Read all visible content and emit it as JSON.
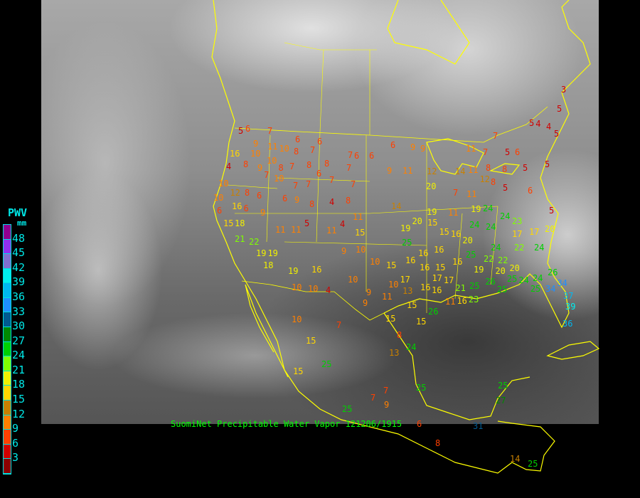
{
  "caption": "SuomiNet Precipitable Water Vapor 121206/1915",
  "legend": {
    "title": "PWV",
    "unit": "mm",
    "labels": [
      "48",
      "45",
      "42",
      "39",
      "36",
      "33",
      "30",
      "27",
      "24",
      "21",
      "18",
      "15",
      "12",
      "9",
      "6",
      "3"
    ],
    "colors_top_to_bottom": [
      "#900090",
      "#9030f0",
      "#8070d0",
      "#00f0f0",
      "#00b8f0",
      "#1e90ff",
      "#005a90",
      "#008800",
      "#00d000",
      "#80ff00",
      "#f0f000",
      "#ffd700",
      "#c88000",
      "#ff8000",
      "#ff4000",
      "#d00000",
      "#8b0000"
    ]
  },
  "colors": {
    "coastline": "#ffff00",
    "text": "#00e8e8",
    "caption": "#00ff00"
  },
  "stations": [
    5,
    6,
    7,
    9,
    11,
    6,
    6,
    16,
    10,
    10,
    8,
    7,
    7,
    6,
    6,
    6,
    9,
    9,
    4,
    8,
    9,
    10,
    8,
    7,
    8,
    8,
    6,
    7,
    9,
    11,
    7,
    10,
    7,
    7,
    7,
    7,
    10,
    12,
    8,
    6,
    10,
    16,
    6,
    9,
    6,
    9,
    8,
    4,
    8,
    14,
    6,
    15,
    18,
    11,
    11,
    5,
    11,
    4,
    11,
    15,
    21,
    22,
    19,
    19,
    18,
    19,
    16,
    9,
    10,
    10,
    15,
    10,
    10,
    4,
    10,
    9,
    10,
    13,
    16,
    16,
    9,
    11,
    15,
    10,
    7,
    15,
    8,
    15,
    13,
    24,
    15,
    25,
    7,
    7,
    9,
    25,
    25,
    8,
    14,
    25,
    25,
    27,
    31,
    6,
    11,
    7,
    7,
    5,
    6,
    5,
    4,
    4,
    5,
    3,
    5,
    11,
    8,
    8,
    5,
    5,
    12,
    14,
    12,
    8,
    5,
    6,
    20,
    7,
    11,
    19,
    11,
    19,
    24,
    24,
    23,
    24,
    24,
    17,
    17,
    5,
    15,
    19,
    20,
    15,
    16,
    20,
    25,
    16,
    16,
    25,
    24,
    22,
    24,
    20,
    16,
    16,
    15,
    16,
    22,
    22,
    19,
    20,
    20,
    26,
    25,
    24,
    24,
    26,
    17,
    17,
    17,
    21,
    25,
    25,
    25,
    11,
    16,
    23,
    34,
    37,
    39,
    36,
    34,
    26,
    15
  ]
}
